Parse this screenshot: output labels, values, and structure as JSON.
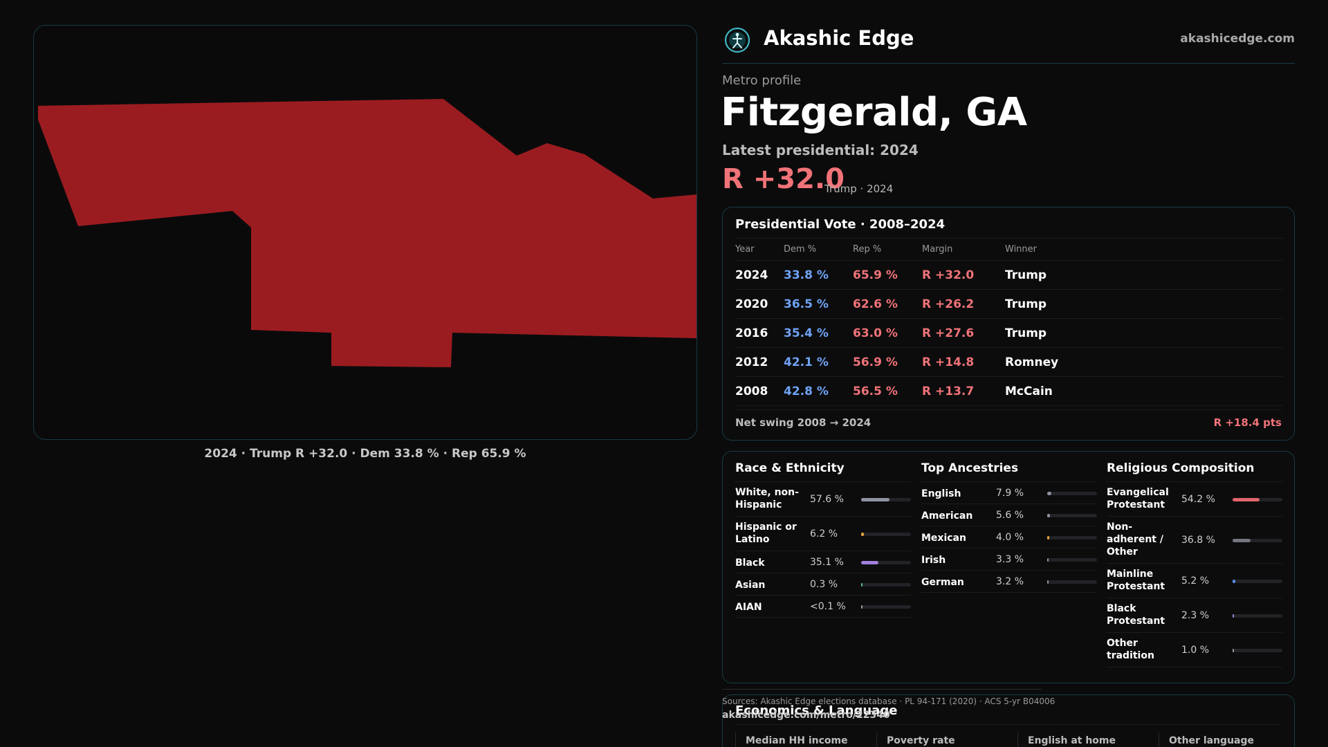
{
  "map": {
    "caption": "2024 · Trump R +32.0 · Dem 33.8 % · Rep 65.9 %",
    "fill_color": "#9b1c20"
  },
  "header": {
    "brand": "Akashic Edge",
    "site": "akashicedge.com",
    "logo_icon": "compass-figure-icon"
  },
  "profile": {
    "kicker": "Metro profile",
    "title": "Fitzgerald, GA",
    "latest_label": "Latest presidential: 2024",
    "margin": "R +32.0",
    "margin_sub": "Trump · 2024"
  },
  "vote": {
    "title": "Presidential Vote · 2008–2024",
    "columns": [
      "Year",
      "Dem %",
      "Rep %",
      "Margin",
      "Winner"
    ],
    "rows": [
      {
        "year": "2024",
        "dem": "33.8 %",
        "rep": "65.9 %",
        "margin": "R +32.0",
        "winner": "Trump"
      },
      {
        "year": "2020",
        "dem": "36.5 %",
        "rep": "62.6 %",
        "margin": "R +26.2",
        "winner": "Trump"
      },
      {
        "year": "2016",
        "dem": "35.4 %",
        "rep": "63.0 %",
        "margin": "R +27.6",
        "winner": "Trump"
      },
      {
        "year": "2012",
        "dem": "42.1 %",
        "rep": "56.9 %",
        "margin": "R +14.8",
        "winner": "Romney"
      },
      {
        "year": "2008",
        "dem": "42.8 %",
        "rep": "56.5 %",
        "margin": "R +13.7",
        "winner": "McCain"
      }
    ],
    "swing_label": "Net swing 2008 → 2024",
    "swing_value": "R +18.4 pts"
  },
  "race": {
    "title": "Race & Ethnicity",
    "items": [
      {
        "label": "White, non-Hispanic",
        "value": "57.6 %",
        "pct": 57.6,
        "color": "#8f93a3"
      },
      {
        "label": "Hispanic or Latino",
        "value": "6.2 %",
        "pct": 6.2,
        "color": "#e8a33c"
      },
      {
        "label": "Black",
        "value": "35.1 %",
        "pct": 35.1,
        "color": "#a27fe0"
      },
      {
        "label": "Asian",
        "value": "0.3 %",
        "pct": 0.3,
        "color": "#5fb7a0"
      },
      {
        "label": "AIAN",
        "value": "<0.1 %",
        "pct": 0.05,
        "color": "#9a9a9a"
      }
    ]
  },
  "ancestry": {
    "title": "Top Ancestries",
    "items": [
      {
        "label": "English",
        "value": "7.9 %",
        "pct": 7.9,
        "color": "#8f93a3"
      },
      {
        "label": "American",
        "value": "5.6 %",
        "pct": 5.6,
        "color": "#8f93a3"
      },
      {
        "label": "Mexican",
        "value": "4.0 %",
        "pct": 4.0,
        "color": "#e8a33c"
      },
      {
        "label": "Irish",
        "value": "3.3 %",
        "pct": 3.3,
        "color": "#8f93a3"
      },
      {
        "label": "German",
        "value": "3.2 %",
        "pct": 3.2,
        "color": "#8f93a3"
      }
    ]
  },
  "religion": {
    "title": "Religious Composition",
    "items": [
      {
        "label": "Evangelical Protestant",
        "value": "54.2 %",
        "pct": 54.2,
        "color": "#e0656b"
      },
      {
        "label": "Non-adherent / Other",
        "value": "36.8 %",
        "pct": 36.8,
        "color": "#73767f"
      },
      {
        "label": "Mainline Protestant",
        "value": "5.2 %",
        "pct": 5.2,
        "color": "#5b8fe8"
      },
      {
        "label": "Black Protestant",
        "value": "2.3 %",
        "pct": 2.3,
        "color": "#a27fe0"
      },
      {
        "label": "Other tradition",
        "value": "1.0 %",
        "pct": 1.0,
        "color": "#9a9a9a"
      }
    ]
  },
  "econ": {
    "title": "Economics & Language",
    "headers": [
      "Median HH income",
      "Poverty rate",
      "English at home",
      "Other language"
    ]
  },
  "sources": {
    "text": "Sources: Akashic Edge elections database · PL 94-171 (2020) · ACS 5-yr B04006",
    "url": "akashicedge.com/metro/22340"
  }
}
